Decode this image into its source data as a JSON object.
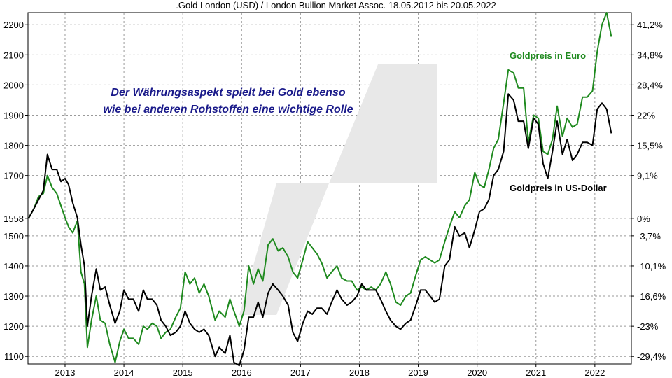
{
  "chart_data": {
    "type": "line",
    "title": ".Gold London (USD) / London Bullion Market Assoc. 18.05.2012 bis 20.05.2022",
    "annotation": [
      "Der Währungsaspekt spielt bei Gold ebenso",
      "wie bei anderen Rohstoffen eine wichtige Rolle"
    ],
    "xlim": [
      2012.37,
      2022.62
    ],
    "ylim": [
      1075,
      2240
    ],
    "grid": true,
    "x_ticks": [
      "2013",
      "2014",
      "2015",
      "2016",
      "2017",
      "2018",
      "2019",
      "2020",
      "2021",
      "2022"
    ],
    "x_tick_values": [
      2013,
      2014,
      2015,
      2016,
      2017,
      2018,
      2019,
      2020,
      2021,
      2022
    ],
    "y_ticks_left": [
      "1100",
      "1200",
      "1300",
      "1400",
      "1500",
      "1558",
      "1700",
      "1800",
      "1900",
      "2000",
      "2100",
      "2200"
    ],
    "y_tick_values_left": [
      1100,
      1200,
      1300,
      1400,
      1500,
      1558,
      1700,
      1800,
      1900,
      2000,
      2100,
      2200
    ],
    "y_ticks_right": [
      "-29,4%",
      "-23%",
      "-16,6%",
      "-10,1%",
      "-3,7%",
      "0%",
      "9,1%",
      "15,5%",
      "22%",
      "28,4%",
      "34,8%",
      "41,2%"
    ],
    "y_tick_values_right": [
      1100,
      1200,
      1300,
      1400,
      1500,
      1558,
      1700,
      1800,
      1900,
      2000,
      2100,
      2200
    ],
    "series": [
      {
        "name": "Goldpreis in US-Dollar",
        "color": "#000000",
        "points": [
          [
            2012.38,
            1558
          ],
          [
            2012.47,
            1590
          ],
          [
            2012.55,
            1620
          ],
          [
            2012.63,
            1650
          ],
          [
            2012.7,
            1770
          ],
          [
            2012.78,
            1720
          ],
          [
            2012.86,
            1720
          ],
          [
            2012.93,
            1680
          ],
          [
            2013.0,
            1690
          ],
          [
            2013.06,
            1670
          ],
          [
            2013.13,
            1610
          ],
          [
            2013.21,
            1560
          ],
          [
            2013.27,
            1470
          ],
          [
            2013.33,
            1400
          ],
          [
            2013.38,
            1200
          ],
          [
            2013.45,
            1300
          ],
          [
            2013.53,
            1390
          ],
          [
            2013.6,
            1320
          ],
          [
            2013.68,
            1330
          ],
          [
            2013.76,
            1270
          ],
          [
            2013.85,
            1210
          ],
          [
            2013.93,
            1250
          ],
          [
            2014.0,
            1320
          ],
          [
            2014.08,
            1290
          ],
          [
            2014.16,
            1290
          ],
          [
            2014.25,
            1250
          ],
          [
            2014.33,
            1320
          ],
          [
            2014.4,
            1290
          ],
          [
            2014.48,
            1290
          ],
          [
            2014.56,
            1270
          ],
          [
            2014.63,
            1220
          ],
          [
            2014.71,
            1200
          ],
          [
            2014.79,
            1170
          ],
          [
            2014.88,
            1180
          ],
          [
            2014.96,
            1200
          ],
          [
            2015.04,
            1250
          ],
          [
            2015.12,
            1210
          ],
          [
            2015.2,
            1190
          ],
          [
            2015.28,
            1180
          ],
          [
            2015.36,
            1190
          ],
          [
            2015.44,
            1170
          ],
          [
            2015.55,
            1100
          ],
          [
            2015.62,
            1130
          ],
          [
            2015.72,
            1110
          ],
          [
            2015.8,
            1170
          ],
          [
            2015.87,
            1080
          ],
          [
            2015.96,
            1070
          ],
          [
            2016.04,
            1120
          ],
          [
            2016.12,
            1230
          ],
          [
            2016.2,
            1230
          ],
          [
            2016.28,
            1280
          ],
          [
            2016.36,
            1230
          ],
          [
            2016.45,
            1310
          ],
          [
            2016.53,
            1340
          ],
          [
            2016.62,
            1320
          ],
          [
            2016.7,
            1300
          ],
          [
            2016.79,
            1270
          ],
          [
            2016.87,
            1180
          ],
          [
            2016.95,
            1150
          ],
          [
            2017.04,
            1210
          ],
          [
            2017.12,
            1250
          ],
          [
            2017.2,
            1240
          ],
          [
            2017.28,
            1260
          ],
          [
            2017.36,
            1260
          ],
          [
            2017.45,
            1240
          ],
          [
            2017.53,
            1280
          ],
          [
            2017.62,
            1320
          ],
          [
            2017.7,
            1290
          ],
          [
            2017.79,
            1270
          ],
          [
            2017.87,
            1280
          ],
          [
            2017.96,
            1300
          ],
          [
            2018.04,
            1340
          ],
          [
            2018.12,
            1320
          ],
          [
            2018.2,
            1320
          ],
          [
            2018.28,
            1320
          ],
          [
            2018.36,
            1290
          ],
          [
            2018.45,
            1250
          ],
          [
            2018.53,
            1220
          ],
          [
            2018.62,
            1200
          ],
          [
            2018.7,
            1190
          ],
          [
            2018.79,
            1210
          ],
          [
            2018.87,
            1220
          ],
          [
            2018.96,
            1270
          ],
          [
            2019.04,
            1320
          ],
          [
            2019.12,
            1320
          ],
          [
            2019.2,
            1300
          ],
          [
            2019.28,
            1280
          ],
          [
            2019.36,
            1290
          ],
          [
            2019.45,
            1400
          ],
          [
            2019.53,
            1420
          ],
          [
            2019.62,
            1530
          ],
          [
            2019.7,
            1500
          ],
          [
            2019.79,
            1510
          ],
          [
            2019.87,
            1460
          ],
          [
            2019.96,
            1520
          ],
          [
            2020.04,
            1580
          ],
          [
            2020.12,
            1590
          ],
          [
            2020.2,
            1620
          ],
          [
            2020.28,
            1700
          ],
          [
            2020.36,
            1720
          ],
          [
            2020.45,
            1780
          ],
          [
            2020.53,
            1970
          ],
          [
            2020.62,
            1950
          ],
          [
            2020.7,
            1880
          ],
          [
            2020.79,
            1880
          ],
          [
            2020.87,
            1790
          ],
          [
            2020.96,
            1890
          ],
          [
            2021.04,
            1870
          ],
          [
            2021.12,
            1740
          ],
          [
            2021.2,
            1690
          ],
          [
            2021.28,
            1780
          ],
          [
            2021.36,
            1880
          ],
          [
            2021.45,
            1770
          ],
          [
            2021.53,
            1820
          ],
          [
            2021.62,
            1750
          ],
          [
            2021.7,
            1770
          ],
          [
            2021.79,
            1810
          ],
          [
            2021.87,
            1810
          ],
          [
            2021.96,
            1800
          ],
          [
            2022.04,
            1920
          ],
          [
            2022.12,
            1940
          ],
          [
            2022.2,
            1920
          ],
          [
            2022.28,
            1840
          ]
        ]
      },
      {
        "name": "Goldpreis in Euro",
        "color": "#1f8a1f",
        "points": [
          [
            2012.38,
            1558
          ],
          [
            2012.47,
            1590
          ],
          [
            2012.55,
            1630
          ],
          [
            2012.63,
            1640
          ],
          [
            2012.7,
            1700
          ],
          [
            2012.78,
            1660
          ],
          [
            2012.86,
            1640
          ],
          [
            2012.93,
            1600
          ],
          [
            2013.0,
            1560
          ],
          [
            2013.06,
            1530
          ],
          [
            2013.13,
            1510
          ],
          [
            2013.21,
            1550
          ],
          [
            2013.27,
            1380
          ],
          [
            2013.33,
            1340
          ],
          [
            2013.38,
            1130
          ],
          [
            2013.45,
            1220
          ],
          [
            2013.53,
            1300
          ],
          [
            2013.6,
            1220
          ],
          [
            2013.68,
            1210
          ],
          [
            2013.76,
            1140
          ],
          [
            2013.85,
            1080
          ],
          [
            2013.93,
            1150
          ],
          [
            2014.0,
            1190
          ],
          [
            2014.08,
            1160
          ],
          [
            2014.16,
            1160
          ],
          [
            2014.25,
            1140
          ],
          [
            2014.33,
            1200
          ],
          [
            2014.4,
            1190
          ],
          [
            2014.48,
            1210
          ],
          [
            2014.56,
            1200
          ],
          [
            2014.63,
            1160
          ],
          [
            2014.71,
            1180
          ],
          [
            2014.79,
            1190
          ],
          [
            2014.88,
            1230
          ],
          [
            2014.96,
            1260
          ],
          [
            2015.04,
            1380
          ],
          [
            2015.12,
            1340
          ],
          [
            2015.2,
            1360
          ],
          [
            2015.28,
            1310
          ],
          [
            2015.36,
            1340
          ],
          [
            2015.44,
            1300
          ],
          [
            2015.55,
            1220
          ],
          [
            2015.62,
            1250
          ],
          [
            2015.72,
            1230
          ],
          [
            2015.8,
            1290
          ],
          [
            2015.87,
            1250
          ],
          [
            2015.96,
            1200
          ],
          [
            2016.04,
            1250
          ],
          [
            2016.12,
            1400
          ],
          [
            2016.2,
            1340
          ],
          [
            2016.28,
            1390
          ],
          [
            2016.36,
            1350
          ],
          [
            2016.45,
            1470
          ],
          [
            2016.53,
            1490
          ],
          [
            2016.62,
            1450
          ],
          [
            2016.7,
            1460
          ],
          [
            2016.79,
            1430
          ],
          [
            2016.87,
            1380
          ],
          [
            2016.95,
            1360
          ],
          [
            2017.04,
            1420
          ],
          [
            2017.12,
            1480
          ],
          [
            2017.2,
            1460
          ],
          [
            2017.28,
            1440
          ],
          [
            2017.36,
            1410
          ],
          [
            2017.45,
            1360
          ],
          [
            2017.53,
            1380
          ],
          [
            2017.62,
            1400
          ],
          [
            2017.7,
            1360
          ],
          [
            2017.79,
            1350
          ],
          [
            2017.87,
            1350
          ],
          [
            2017.96,
            1320
          ],
          [
            2018.04,
            1330
          ],
          [
            2018.12,
            1320
          ],
          [
            2018.2,
            1330
          ],
          [
            2018.28,
            1320
          ],
          [
            2018.36,
            1340
          ],
          [
            2018.45,
            1380
          ],
          [
            2018.53,
            1340
          ],
          [
            2018.62,
            1280
          ],
          [
            2018.7,
            1270
          ],
          [
            2018.79,
            1300
          ],
          [
            2018.87,
            1310
          ],
          [
            2018.96,
            1370
          ],
          [
            2019.04,
            1420
          ],
          [
            2019.12,
            1430
          ],
          [
            2019.2,
            1420
          ],
          [
            2019.28,
            1410
          ],
          [
            2019.36,
            1420
          ],
          [
            2019.45,
            1480
          ],
          [
            2019.53,
            1530
          ],
          [
            2019.62,
            1580
          ],
          [
            2019.7,
            1560
          ],
          [
            2019.79,
            1600
          ],
          [
            2019.87,
            1620
          ],
          [
            2019.96,
            1710
          ],
          [
            2020.04,
            1670
          ],
          [
            2020.12,
            1660
          ],
          [
            2020.2,
            1720
          ],
          [
            2020.28,
            1790
          ],
          [
            2020.36,
            1820
          ],
          [
            2020.45,
            1940
          ],
          [
            2020.53,
            2050
          ],
          [
            2020.62,
            2040
          ],
          [
            2020.7,
            1990
          ],
          [
            2020.79,
            1990
          ],
          [
            2020.87,
            1810
          ],
          [
            2020.96,
            1900
          ],
          [
            2021.04,
            1890
          ],
          [
            2021.12,
            1780
          ],
          [
            2021.2,
            1770
          ],
          [
            2021.28,
            1820
          ],
          [
            2021.36,
            1930
          ],
          [
            2021.45,
            1830
          ],
          [
            2021.53,
            1890
          ],
          [
            2021.62,
            1860
          ],
          [
            2021.7,
            1870
          ],
          [
            2021.79,
            1960
          ],
          [
            2021.87,
            1960
          ],
          [
            2021.96,
            1980
          ],
          [
            2022.04,
            2110
          ],
          [
            2022.12,
            2200
          ],
          [
            2022.2,
            2240
          ],
          [
            2022.28,
            2160
          ]
        ]
      }
    ]
  }
}
